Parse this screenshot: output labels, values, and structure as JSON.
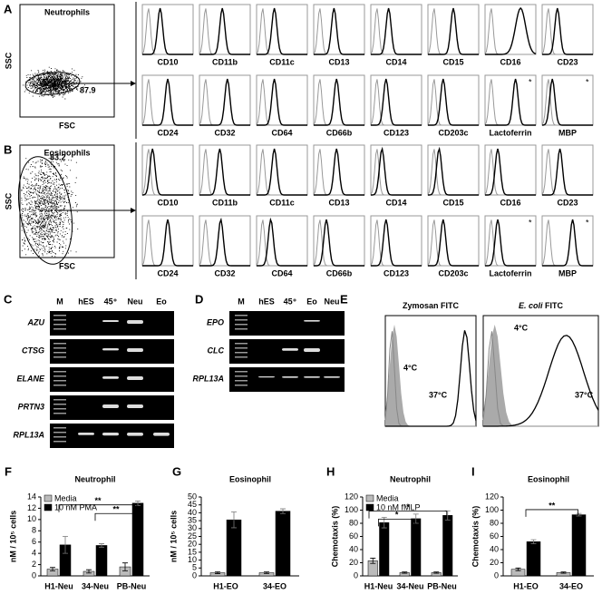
{
  "panel_a": {
    "label": "A",
    "flow": {
      "title": "Neutrophils",
      "y_label": "SSC",
      "x_label": "FSC",
      "gate_value": "87.9"
    },
    "row1": [
      "CD10",
      "CD11b",
      "CD11c",
      "CD13",
      "CD14",
      "CD15",
      "CD16",
      "CD23"
    ],
    "row2": [
      "CD24",
      "CD32",
      "CD64",
      "CD66b",
      "CD123",
      "CD203c",
      "Lactoferrin",
      "MBP"
    ],
    "asterisks": [
      "*",
      "*"
    ]
  },
  "panel_b": {
    "label": "B",
    "flow": {
      "title": "Eosinophils",
      "y_label": "SSC",
      "x_label": "FSC",
      "gate_value": "83.2"
    },
    "row1": [
      "CD10",
      "CD11b",
      "CD11c",
      "CD13",
      "CD14",
      "CD15",
      "CD16",
      "CD23"
    ],
    "row2": [
      "CD24",
      "CD32",
      "CD64",
      "CD66b",
      "CD123",
      "CD203c",
      "Lactoferrin",
      "MBP"
    ],
    "asterisks": [
      "*",
      "*"
    ]
  },
  "panel_c": {
    "label": "C",
    "lanes": [
      "M",
      "hES",
      "45⁺",
      "Neu",
      "Eo"
    ],
    "genes": [
      "AZU",
      "CTSG",
      "ELANE",
      "PRTN3",
      "RPL13A"
    ]
  },
  "panel_d": {
    "label": "D",
    "lanes": [
      "M",
      "hES",
      "45⁺",
      "Eo",
      "Neu"
    ],
    "genes": [
      "EPO",
      "CLC",
      "RPL13A"
    ]
  },
  "panel_e": {
    "label": "E",
    "plots": [
      {
        "title": "Zymosan FITC",
        "cold": "4°C",
        "warm": "37°C"
      },
      {
        "title_italic": "E. coli",
        "title": "FITC",
        "cold": "4°C",
        "warm": "37°C"
      }
    ]
  },
  "charts": [
    {
      "type": "bar",
      "label": "F",
      "title": "Neutrophil",
      "y_label": "nM / 10⁵ cells",
      "categories": [
        "H1-Neu",
        "34-Neu",
        "PB-Neu"
      ],
      "series": [
        {
          "name": "Media",
          "color": "#bbbbbb",
          "values": [
            1.2,
            0.8,
            1.6
          ],
          "errors": [
            0.3,
            0.3,
            0.7
          ]
        },
        {
          "name": "10 nM PMA",
          "color": "#000000",
          "values": [
            5.5,
            5.4,
            12.9
          ],
          "errors": [
            1.5,
            0.3,
            0.4
          ]
        }
      ],
      "ylim": [
        0,
        14
      ],
      "yticks": [
        0,
        2,
        4,
        6,
        8,
        10,
        12,
        14
      ],
      "annotations": [
        "**",
        "**"
      ]
    },
    {
      "type": "bar",
      "label": "G",
      "title": "Eosinophil",
      "y_label": "nM / 10⁵ cells",
      "categories": [
        "H1-EO",
        "34-EO"
      ],
      "series": [
        {
          "color": "#bbbbbb",
          "values": [
            2,
            2
          ],
          "errors": [
            0.6,
            0.5
          ]
        },
        {
          "color": "#000000",
          "values": [
            35.5,
            41
          ],
          "errors": [
            5,
            1.5
          ]
        }
      ],
      "ylim": [
        0,
        50
      ],
      "yticks": [
        0,
        5,
        10,
        15,
        20,
        25,
        30,
        35,
        40,
        45,
        50
      ],
      "annotations": []
    },
    {
      "type": "bar",
      "label": "H",
      "title": "Neutrophil",
      "y_label": "Chemotaxis (%)",
      "categories": [
        "H1-Neu",
        "34-Neu",
        "PB-Neu"
      ],
      "series": [
        {
          "name": "Media",
          "color": "#bbbbbb",
          "values": [
            23,
            5,
            5
          ],
          "errors": [
            4,
            1,
            1
          ]
        },
        {
          "name": "10 nM fMLP",
          "color": "#000000",
          "values": [
            81,
            87,
            92
          ],
          "errors": [
            8,
            7,
            7
          ]
        }
      ],
      "ylim": [
        0,
        120
      ],
      "yticks": [
        0,
        20,
        40,
        60,
        80,
        100,
        120
      ],
      "annotations": [
        "*",
        "*"
      ]
    },
    {
      "type": "bar",
      "label": "I",
      "title": "Eosinophil",
      "y_label": "Chemotaxis (%)",
      "categories": [
        "H1-EO",
        "34-EO"
      ],
      "series": [
        {
          "color": "#bbbbbb",
          "values": [
            10,
            5
          ],
          "errors": [
            2,
            1
          ]
        },
        {
          "color": "#000000",
          "values": [
            52,
            93
          ],
          "errors": [
            3,
            2
          ]
        }
      ],
      "ylim": [
        0,
        120
      ],
      "yticks": [
        0,
        20,
        40,
        60,
        80,
        100,
        120
      ],
      "annotations": [
        "**"
      ]
    }
  ]
}
